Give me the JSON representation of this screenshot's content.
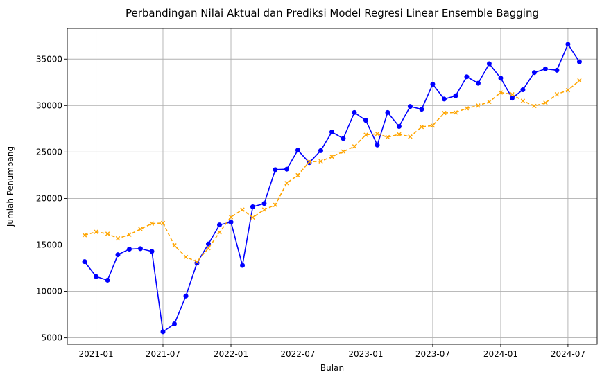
{
  "chart_data": {
    "type": "line",
    "title": "Perbandingan Nilai Aktual dan Prediksi Model Regresi Linear Ensemble Bagging",
    "xlabel": "Bulan",
    "ylabel": "Jumlah Penumpang",
    "x_ticks": [
      "2021-01",
      "2021-07",
      "2022-01",
      "2022-07",
      "2023-01",
      "2023-07",
      "2024-01",
      "2024-07"
    ],
    "y_ticks": [
      5000,
      10000,
      15000,
      20000,
      25000,
      30000,
      35000
    ],
    "xlim": [
      "2020-10-15",
      "2024-09-18"
    ],
    "ylim": [
      4300,
      38300
    ],
    "grid": true,
    "x": [
      "2020-12",
      "2021-01",
      "2021-02",
      "2021-03",
      "2021-04",
      "2021-05",
      "2021-06",
      "2021-07",
      "2021-08",
      "2021-09",
      "2021-10",
      "2021-11",
      "2021-12",
      "2022-01",
      "2022-02",
      "2022-03",
      "2022-04",
      "2022-05",
      "2022-06",
      "2022-07",
      "2022-08",
      "2022-09",
      "2022-10",
      "2022-11",
      "2022-12",
      "2023-01",
      "2023-02",
      "2023-03",
      "2023-04",
      "2023-05",
      "2023-06",
      "2023-07",
      "2023-08",
      "2023-09",
      "2023-10",
      "2023-11",
      "2023-12",
      "2024-01",
      "2024-02",
      "2024-03",
      "2024-04",
      "2024-05",
      "2024-06",
      "2024-07",
      "2024-08"
    ],
    "series": [
      {
        "key": "actual",
        "color": "#0000ff",
        "style": "solid",
        "marker": "circle",
        "values": [
          13200,
          11600,
          11200,
          13950,
          14550,
          14600,
          14300,
          5650,
          6500,
          9500,
          13050,
          15100,
          17150,
          17450,
          12800,
          19100,
          19450,
          23100,
          23150,
          25200,
          23850,
          25150,
          27150,
          26450,
          29250,
          28400,
          25750,
          29250,
          27750,
          29900,
          29600,
          32300,
          30700,
          31050,
          33100,
          32400,
          34500,
          32950,
          30800,
          31700,
          33550,
          33950,
          33800,
          36600,
          34700
        ]
      },
      {
        "key": "predicted",
        "color": "#ffa500",
        "style": "dashed",
        "marker": "x",
        "values": [
          16050,
          16400,
          16200,
          15700,
          16100,
          16700,
          17300,
          17350,
          14950,
          13700,
          13200,
          14650,
          16350,
          18000,
          18800,
          17950,
          18800,
          19300,
          21650,
          22500,
          23950,
          24000,
          24500,
          25050,
          25600,
          26850,
          26950,
          26600,
          26900,
          26650,
          27700,
          27850,
          29200,
          29250,
          29700,
          30000,
          30400,
          31400,
          31200,
          30500,
          29950,
          30300,
          31200,
          31650,
          32700
        ]
      }
    ]
  }
}
